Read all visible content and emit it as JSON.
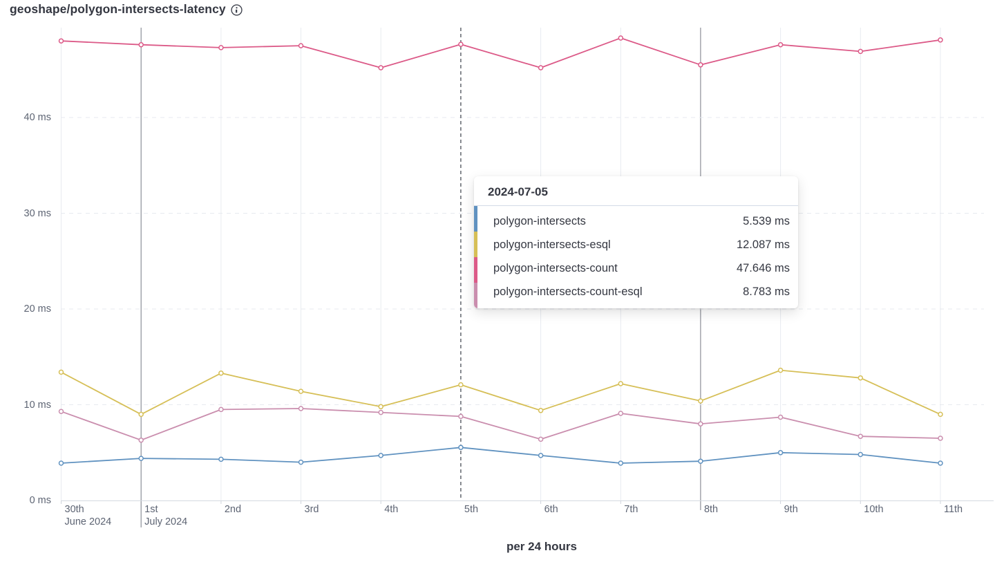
{
  "header": {
    "title": "geoshape/polygon-intersects-latency",
    "info_icon": "info-icon"
  },
  "chart_data": {
    "type": "line",
    "title": "geoshape/polygon-intersects-latency",
    "xlabel": "per 24 hours",
    "ylabel": "",
    "ylim": [
      0,
      49.4
    ],
    "grid": {
      "horizontal": "dashed",
      "vertical": "solid",
      "legend": "none"
    },
    "y_ticks": [
      {
        "value": 0,
        "label": "0 ms"
      },
      {
        "value": 10,
        "label": "10 ms"
      },
      {
        "value": 20,
        "label": "20 ms"
      },
      {
        "value": 30,
        "label": "30 ms"
      },
      {
        "value": 40,
        "label": "40 ms"
      }
    ],
    "x_ticks": [
      {
        "label": "30th",
        "sublabel": "June 2024"
      },
      {
        "label": "1st",
        "sublabel": "July 2024",
        "major": true
      },
      {
        "label": "2nd"
      },
      {
        "label": "3rd"
      },
      {
        "label": "4th"
      },
      {
        "label": "5th"
      },
      {
        "label": "6th"
      },
      {
        "label": "7th"
      },
      {
        "label": "8th",
        "major": true
      },
      {
        "label": "9th"
      },
      {
        "label": "10th"
      },
      {
        "label": "11th"
      }
    ],
    "cursor_index": 5,
    "cursor_date": "2024-07-05",
    "series": [
      {
        "name": "polygon-intersects",
        "color": "#6092C0",
        "values": [
          3.9,
          4.4,
          4.3,
          4.0,
          4.7,
          5.539,
          4.7,
          3.9,
          4.1,
          5.0,
          4.8,
          3.9
        ]
      },
      {
        "name": "polygon-intersects-esql",
        "color": "#D6BF57",
        "values": [
          13.4,
          9.0,
          13.3,
          11.4,
          9.8,
          12.087,
          9.4,
          12.2,
          10.4,
          13.6,
          12.8,
          9.0
        ]
      },
      {
        "name": "polygon-intersects-count",
        "color": "#DC5A88",
        "values": [
          48.0,
          47.6,
          47.3,
          47.5,
          45.2,
          47.646,
          45.2,
          48.3,
          45.5,
          47.6,
          46.9,
          48.1
        ]
      },
      {
        "name": "polygon-intersects-count-esql",
        "color": "#CA8EAE",
        "values": [
          9.3,
          6.3,
          9.5,
          9.6,
          9.2,
          8.783,
          6.4,
          9.1,
          8.0,
          8.7,
          6.7,
          6.5
        ]
      }
    ]
  },
  "tooltip": {
    "header": "2024-07-05",
    "rows": [
      {
        "label": "polygon-intersects",
        "value": "5.539 ms",
        "color": "#6092C0"
      },
      {
        "label": "polygon-intersects-esql",
        "value": "12.087 ms",
        "color": "#D6BF57"
      },
      {
        "label": "polygon-intersects-count",
        "value": "47.646 ms",
        "color": "#DC5A88"
      },
      {
        "label": "polygon-intersects-count-esql",
        "value": "8.783 ms",
        "color": "#CA8EAE"
      }
    ]
  }
}
